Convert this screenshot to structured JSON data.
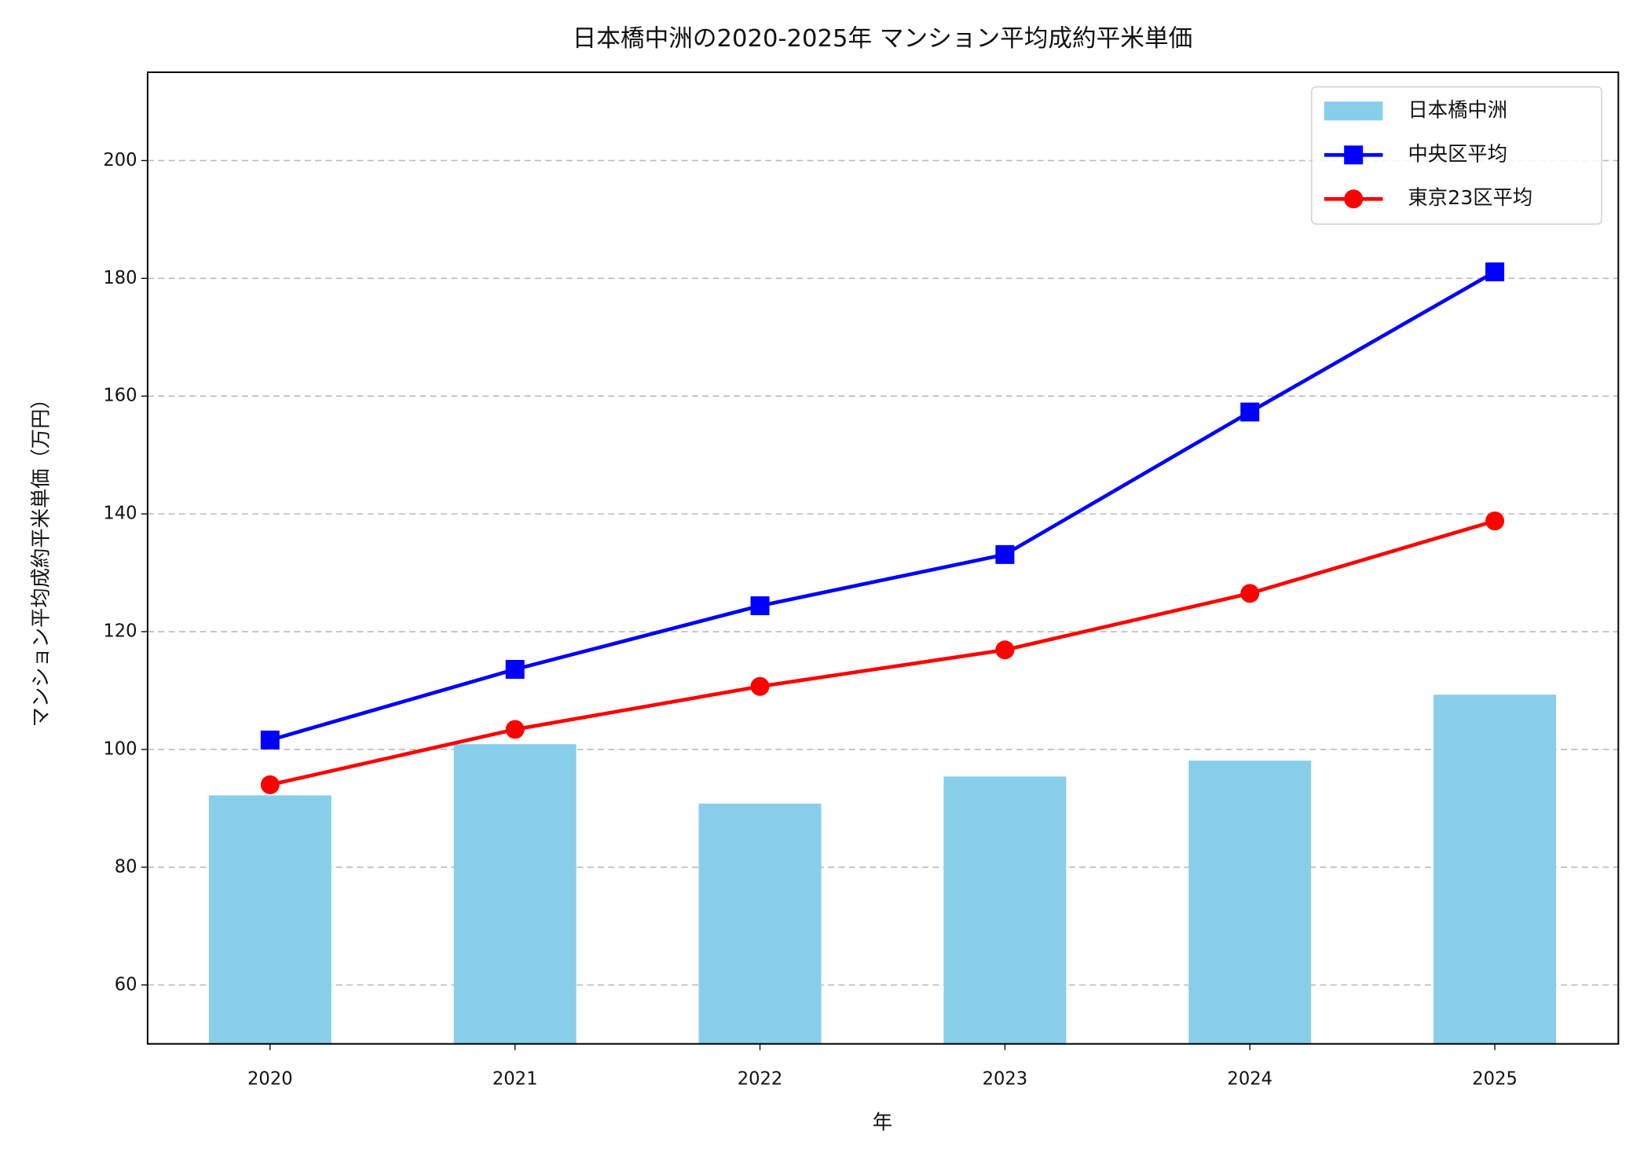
{
  "chart_data": {
    "type": "combo",
    "title": "日本橋中洲の2020-2025年 マンション平均成約平米単価",
    "x_label": "年",
    "y_label": "マンション平均成約平米単価（万円）",
    "categories": [
      "2020",
      "2021",
      "2022",
      "2023",
      "2024",
      "2025"
    ],
    "series": [
      {
        "name": "日本橋中洲",
        "type": "bar",
        "color": "#87ceeb",
        "values": [
          92.2,
          100.9,
          90.8,
          95.4,
          98.1,
          109.3
        ]
      },
      {
        "name": "中央区平均",
        "type": "line",
        "marker": "square",
        "color": "#0000ff",
        "values": [
          101.6,
          113.6,
          124.4,
          133.1,
          157.3,
          181.1
        ]
      },
      {
        "name": "東京23区平均",
        "type": "line",
        "marker": "circle",
        "color": "#ff0000",
        "values": [
          94.0,
          103.4,
          110.7,
          116.9,
          126.5,
          138.8
        ]
      }
    ],
    "ylim": [
      50,
      215
    ],
    "yticks": [
      60,
      80,
      100,
      120,
      140,
      160,
      180,
      200
    ],
    "grid": true,
    "legend": "upper-right"
  }
}
